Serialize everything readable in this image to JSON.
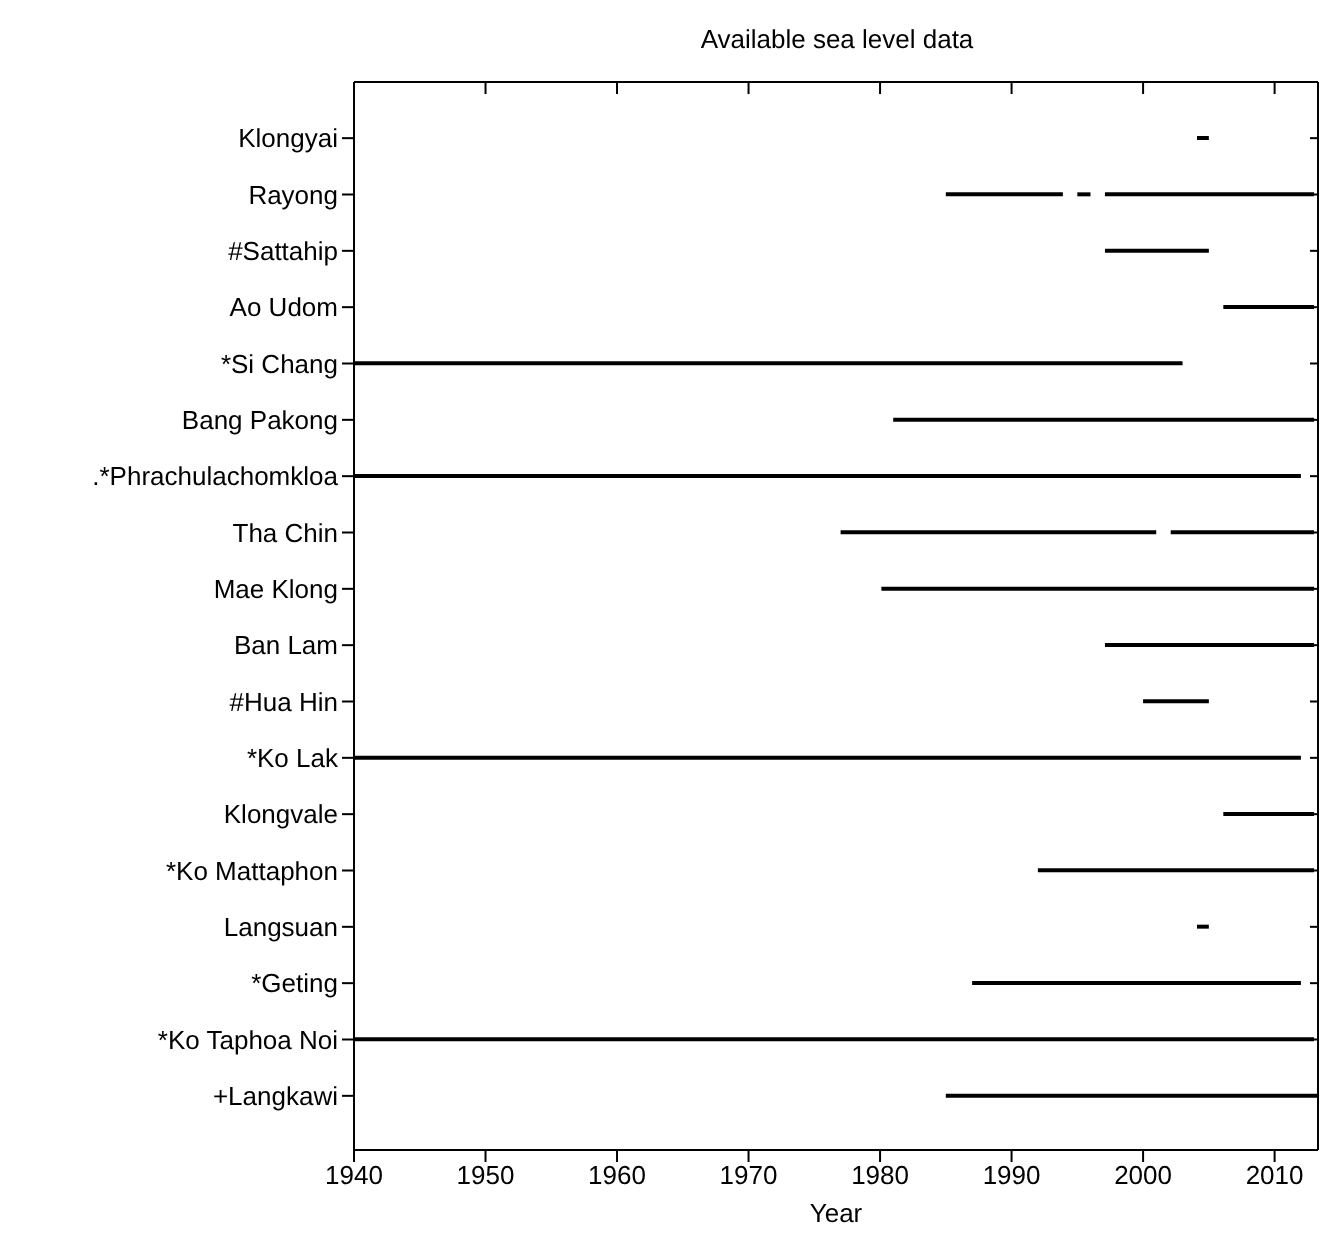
{
  "chart_data": {
    "type": "bar",
    "orientation": "horizontal",
    "title": "Available sea level data",
    "xlabel": "Year",
    "categories": [
      "Klongyai",
      "Rayong",
      "#Sattahip",
      "Ao Udom",
      "*Si Chang",
      "Bang Pakong",
      ".*Phrachulachomkloa",
      "Tha Chin",
      "Mae Klong",
      "Ban Lam",
      "#Hua Hin",
      "*Ko Lak",
      "Klongvale",
      "*Ko Mattaphon",
      "Langsuan",
      "*Geting",
      "*Ko Taphoa Noi",
      "+Langkawi"
    ],
    "series": [
      {
        "color": "#000000",
        "base": [
          2004.1,
          1985,
          1997.1,
          2006.1,
          1940,
          1981,
          1940,
          1977,
          1980.1,
          1997.1,
          2000,
          1940,
          2006.1,
          1992,
          2004.1,
          1987,
          1940,
          1985
        ],
        "values": [
          0.9,
          8.9,
          7.9,
          6.9,
          63,
          32,
          72,
          24,
          32.9,
          15.9,
          5,
          72,
          6.9,
          21,
          0.9,
          25,
          73,
          28.3
        ]
      },
      {
        "color": "#000000",
        "base": [
          null,
          1995,
          null,
          null,
          null,
          null,
          null,
          2002.1,
          null,
          null,
          null,
          null,
          null,
          null,
          null,
          null,
          null,
          null
        ],
        "values": [
          null,
          1,
          null,
          null,
          null,
          null,
          null,
          10.9,
          null,
          null,
          null,
          null,
          null,
          null,
          null,
          null,
          null,
          null
        ]
      },
      {
        "color": "#000000",
        "base": [
          null,
          1997.1,
          null,
          null,
          null,
          null,
          null,
          null,
          null,
          null,
          null,
          null,
          null,
          null,
          null,
          null,
          null,
          null
        ],
        "values": [
          null,
          15.9,
          null,
          null,
          null,
          null,
          null,
          null,
          null,
          null,
          null,
          null,
          null,
          null,
          null,
          null,
          null,
          null
        ]
      }
    ],
    "xlim": [
      1940,
      2013.3
    ],
    "xticks": [
      1940,
      1950,
      1960,
      1970,
      1980,
      1990,
      2000,
      2010
    ],
    "grid": false
  }
}
